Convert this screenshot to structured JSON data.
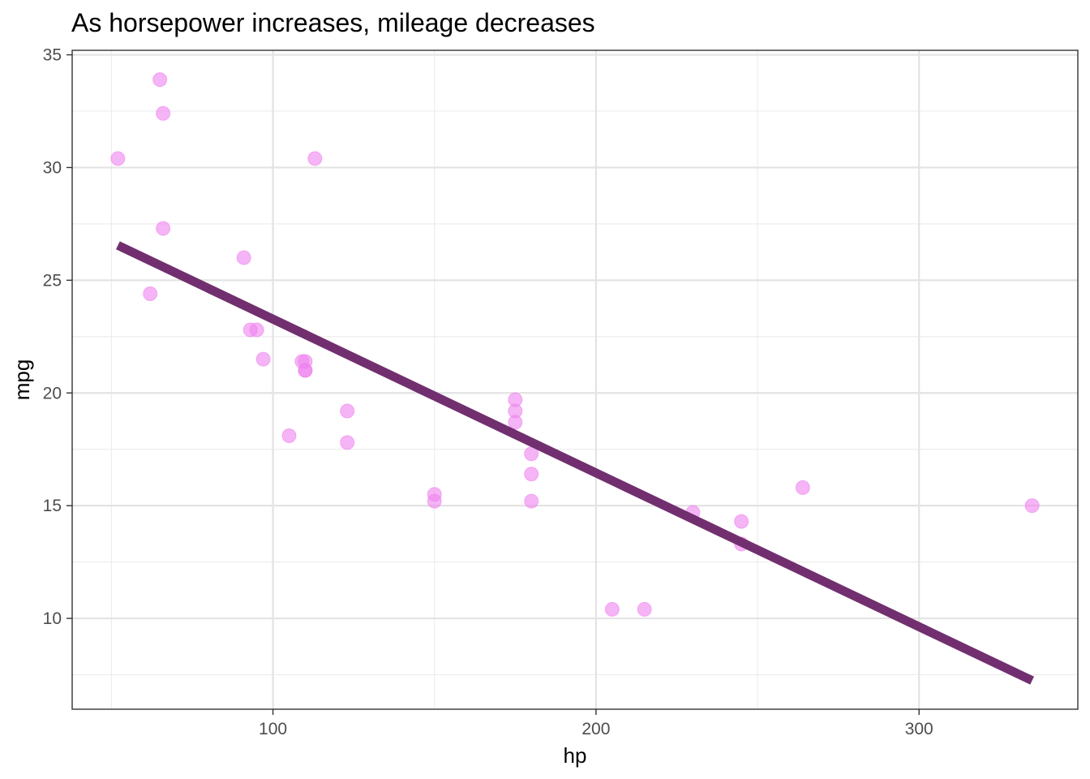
{
  "chart_data": {
    "type": "scatter",
    "title": "As horsepower increases, mileage decreases",
    "xlabel": "hp",
    "ylabel": "mpg",
    "xlim": [
      37.85,
      349.15
    ],
    "ylim": [
      5.97,
      35.2
    ],
    "x_ticks": [
      100,
      200,
      300
    ],
    "y_ticks": [
      10,
      15,
      20,
      25,
      30,
      35
    ],
    "x_minor_ticks": [
      50,
      150,
      250
    ],
    "y_minor_ticks": [
      7.5,
      12.5,
      17.5,
      22.5,
      27.5,
      32.5
    ],
    "grid": true,
    "point_color": "#EE82EE",
    "point_alpha": 0.6,
    "line_color": "#722F6F",
    "points": [
      {
        "x": 52,
        "y": 30.4
      },
      {
        "x": 62,
        "y": 24.4
      },
      {
        "x": 65,
        "y": 33.9
      },
      {
        "x": 66,
        "y": 32.4
      },
      {
        "x": 66,
        "y": 27.3
      },
      {
        "x": 91,
        "y": 26.0
      },
      {
        "x": 93,
        "y": 22.8
      },
      {
        "x": 95,
        "y": 22.8
      },
      {
        "x": 97,
        "y": 21.5
      },
      {
        "x": 105,
        "y": 18.1
      },
      {
        "x": 109,
        "y": 21.4
      },
      {
        "x": 110,
        "y": 21.0
      },
      {
        "x": 110,
        "y": 21.0
      },
      {
        "x": 110,
        "y": 21.4
      },
      {
        "x": 113,
        "y": 30.4
      },
      {
        "x": 123,
        "y": 19.2
      },
      {
        "x": 123,
        "y": 17.8
      },
      {
        "x": 150,
        "y": 15.5
      },
      {
        "x": 150,
        "y": 15.2
      },
      {
        "x": 175,
        "y": 18.7
      },
      {
        "x": 175,
        "y": 19.2
      },
      {
        "x": 175,
        "y": 19.7
      },
      {
        "x": 180,
        "y": 16.4
      },
      {
        "x": 180,
        "y": 17.3
      },
      {
        "x": 180,
        "y": 15.2
      },
      {
        "x": 205,
        "y": 10.4
      },
      {
        "x": 215,
        "y": 10.4
      },
      {
        "x": 230,
        "y": 14.7
      },
      {
        "x": 245,
        "y": 13.3
      },
      {
        "x": 245,
        "y": 14.3
      },
      {
        "x": 264,
        "y": 15.8
      },
      {
        "x": 335,
        "y": 15.0
      }
    ],
    "trend_line": {
      "x": [
        52,
        335
      ],
      "y": [
        26.55,
        7.24
      ]
    }
  }
}
